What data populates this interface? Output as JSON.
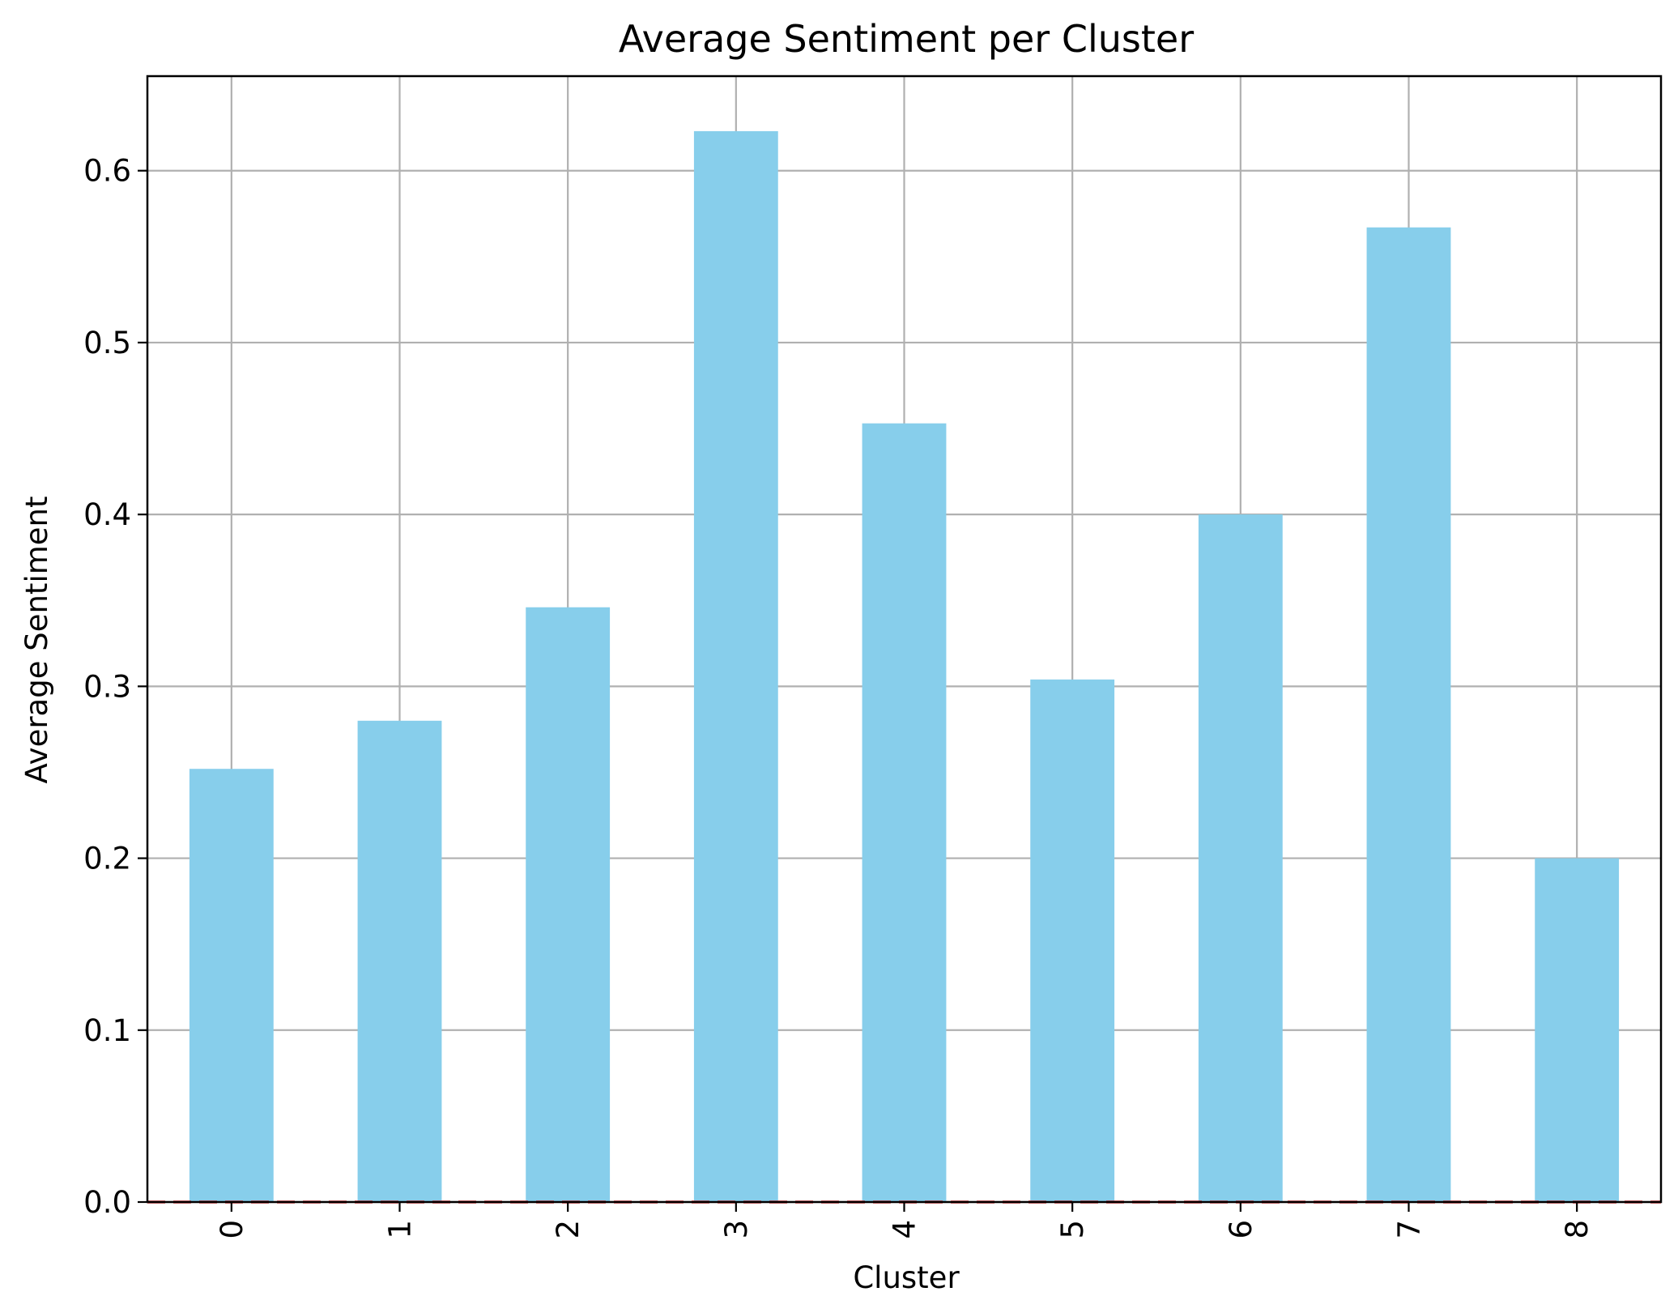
{
  "chart_data": {
    "type": "bar",
    "title": "Average Sentiment per Cluster",
    "xlabel": "Cluster",
    "ylabel": "Average Sentiment",
    "categories": [
      "0",
      "1",
      "2",
      "3",
      "4",
      "5",
      "6",
      "7",
      "8"
    ],
    "values": [
      0.252,
      0.28,
      0.346,
      0.623,
      0.453,
      0.304,
      0.4,
      0.567,
      0.2
    ],
    "ylim": [
      0,
      0.655
    ],
    "yticks": [
      0.0,
      0.1,
      0.2,
      0.3,
      0.4,
      0.5,
      0.6
    ],
    "ytick_labels": [
      "0.0",
      "0.1",
      "0.2",
      "0.3",
      "0.4",
      "0.5",
      "0.6"
    ],
    "grid": true,
    "bar_color": "#87ceeb",
    "reference_line": {
      "y": 0,
      "color": "#d62728",
      "style": "dashed"
    }
  }
}
